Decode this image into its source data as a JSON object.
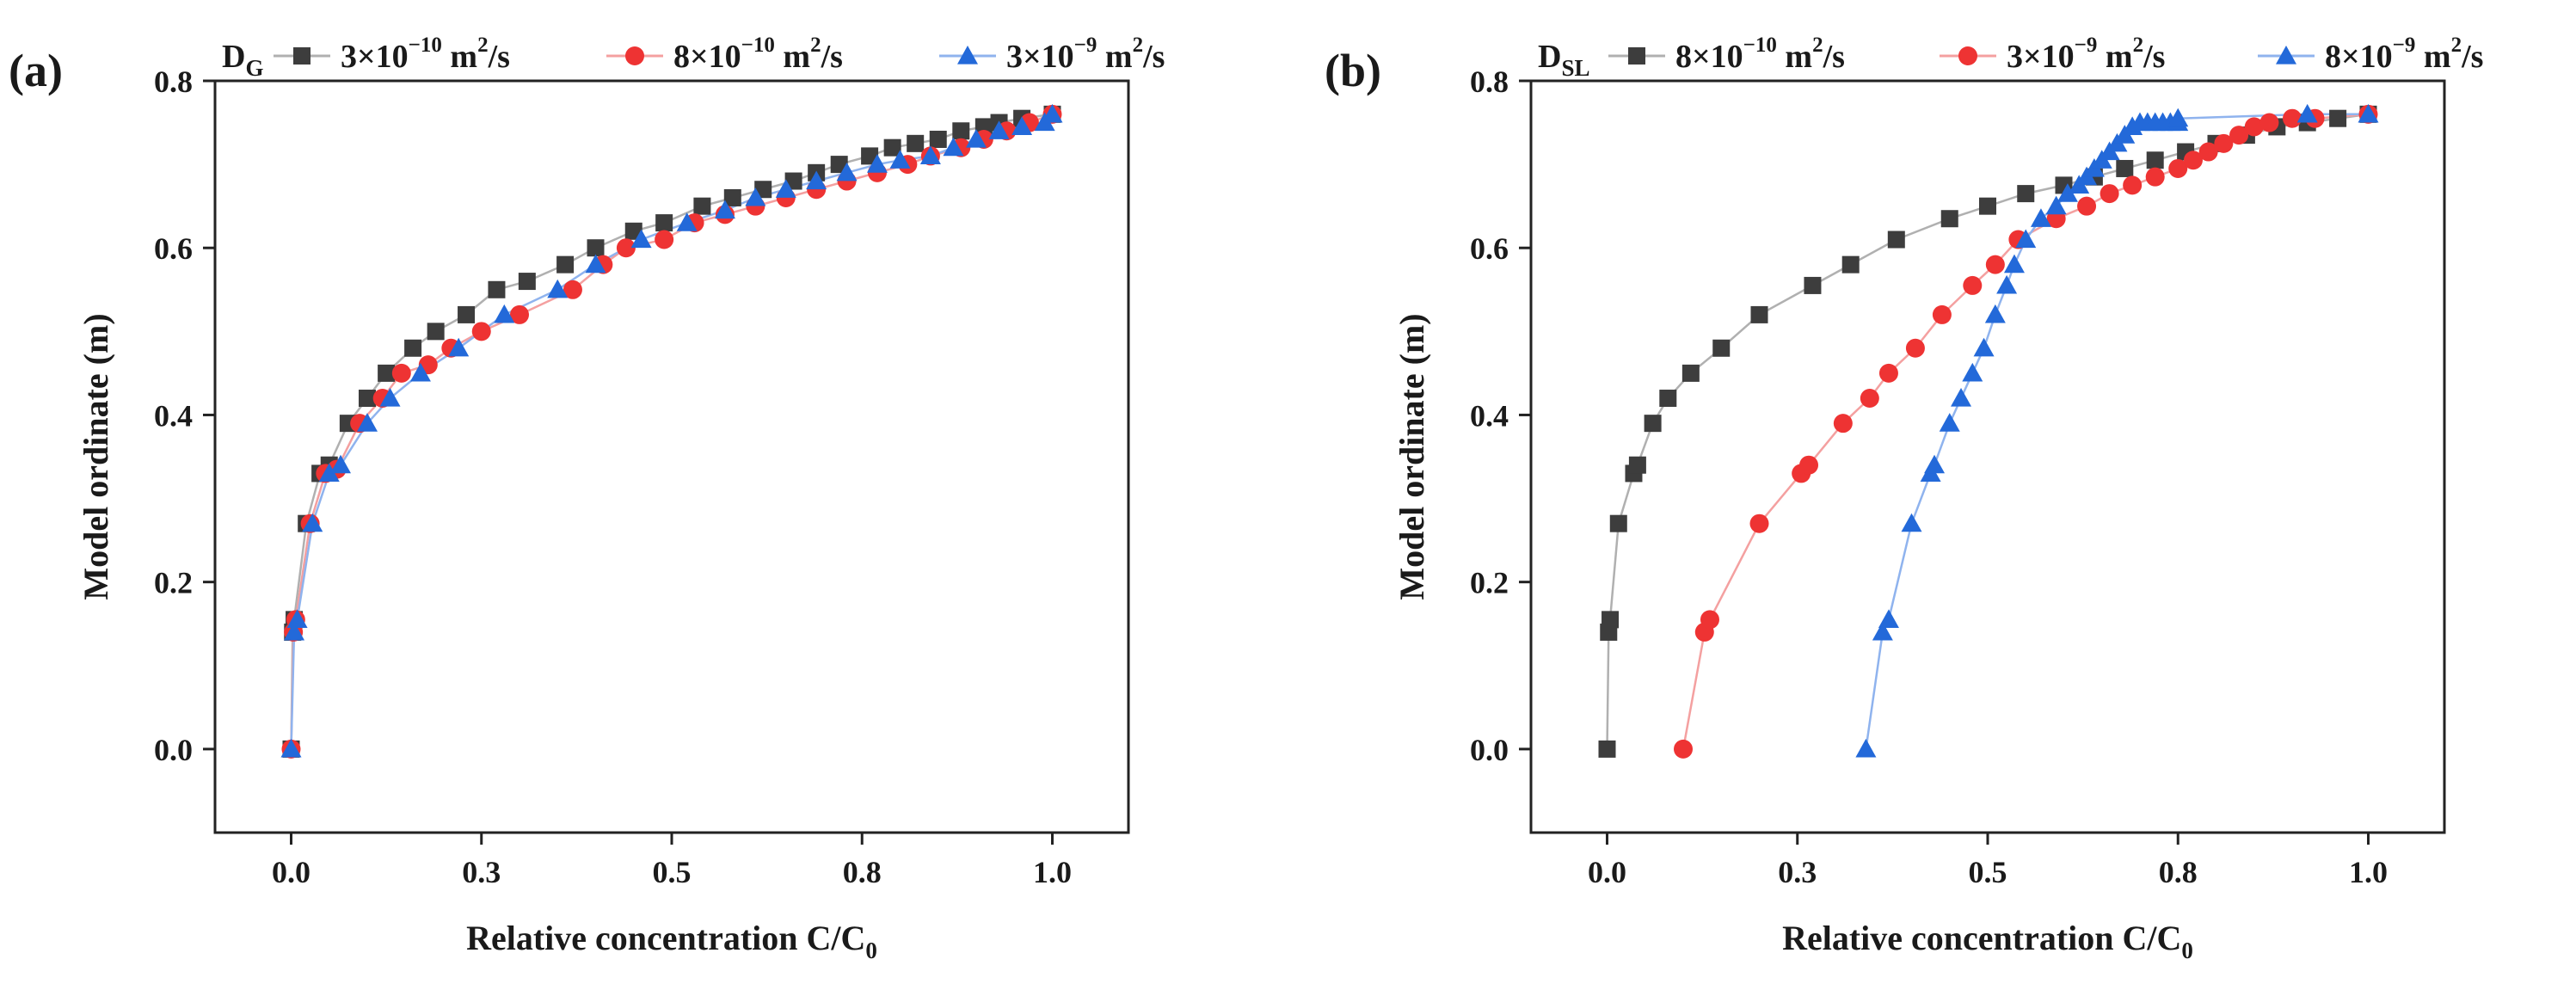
{
  "chart_data": [
    {
      "type": "line",
      "panel_label": "(a)",
      "legend_title": "D",
      "legend_title_sub": "G",
      "xlabel": "Relative concentration C/C",
      "xlabel_sub": "0",
      "ylabel": "Model ordinate (m)",
      "xlim": [
        -0.1,
        1.1
      ],
      "ylim": [
        -0.1,
        0.8
      ],
      "xticks": [
        0.0,
        0.25,
        0.5,
        0.75,
        1.0
      ],
      "xtick_labels": [
        "0.0",
        "0.3",
        "0.5",
        "0.8",
        "1.0"
      ],
      "yticks": [
        0.0,
        0.2,
        0.4,
        0.6,
        0.8
      ],
      "ytick_labels": [
        "0.0",
        "0.2",
        "0.4",
        "0.6",
        "0.8"
      ],
      "legend_placement": "top",
      "series": [
        {
          "name": "3×10⁻¹⁰ m²/s",
          "mantissa": "3×10",
          "exponent": "−10",
          "unit": " m",
          "unit_sup": "2",
          "unit_tail": "/s",
          "marker": "square",
          "color": "#3d3d3d",
          "line_color": "#b0b0b0",
          "x": [
            0.0,
            0.002,
            0.004,
            0.02,
            0.038,
            0.05,
            0.075,
            0.1,
            0.125,
            0.16,
            0.19,
            0.23,
            0.27,
            0.31,
            0.36,
            0.4,
            0.45,
            0.49,
            0.54,
            0.58,
            0.62,
            0.66,
            0.69,
            0.72,
            0.76,
            0.79,
            0.82,
            0.85,
            0.88,
            0.91,
            0.93,
            0.96,
            1.0
          ],
          "y": [
            0.0,
            0.14,
            0.155,
            0.27,
            0.33,
            0.34,
            0.39,
            0.42,
            0.45,
            0.48,
            0.5,
            0.52,
            0.55,
            0.56,
            0.58,
            0.6,
            0.62,
            0.63,
            0.65,
            0.66,
            0.67,
            0.68,
            0.69,
            0.7,
            0.71,
            0.72,
            0.725,
            0.73,
            0.74,
            0.745,
            0.75,
            0.755,
            0.76
          ]
        },
        {
          "name": "8×10⁻¹⁰ m²/s",
          "mantissa": "8×10",
          "exponent": "−10",
          "unit": " m",
          "unit_sup": "2",
          "unit_tail": "/s",
          "marker": "circle",
          "color": "#ee3333",
          "line_color": "#f4a0a0",
          "x": [
            0.0,
            0.003,
            0.006,
            0.025,
            0.045,
            0.06,
            0.09,
            0.12,
            0.145,
            0.18,
            0.21,
            0.25,
            0.3,
            0.37,
            0.41,
            0.44,
            0.49,
            0.53,
            0.57,
            0.61,
            0.65,
            0.69,
            0.73,
            0.77,
            0.81,
            0.84,
            0.88,
            0.91,
            0.94,
            0.97,
            1.0
          ],
          "y": [
            0.0,
            0.14,
            0.155,
            0.27,
            0.33,
            0.335,
            0.39,
            0.42,
            0.45,
            0.46,
            0.48,
            0.5,
            0.52,
            0.55,
            0.58,
            0.6,
            0.61,
            0.63,
            0.64,
            0.65,
            0.66,
            0.67,
            0.68,
            0.69,
            0.7,
            0.71,
            0.72,
            0.73,
            0.74,
            0.75,
            0.76
          ]
        },
        {
          "name": "3×10⁻⁹ m²/s",
          "mantissa": "3×10",
          "exponent": "−9",
          "unit": " m",
          "unit_sup": "2",
          "unit_tail": "/s",
          "marker": "triangle",
          "color": "#2369d9",
          "line_color": "#8fb3ee",
          "x": [
            0.0,
            0.004,
            0.008,
            0.028,
            0.05,
            0.065,
            0.1,
            0.13,
            0.17,
            0.22,
            0.28,
            0.35,
            0.4,
            0.46,
            0.52,
            0.57,
            0.61,
            0.65,
            0.69,
            0.73,
            0.77,
            0.8,
            0.84,
            0.87,
            0.9,
            0.93,
            0.96,
            0.99,
            1.0
          ],
          "y": [
            0.0,
            0.14,
            0.155,
            0.27,
            0.33,
            0.34,
            0.39,
            0.42,
            0.45,
            0.48,
            0.52,
            0.55,
            0.58,
            0.61,
            0.63,
            0.645,
            0.66,
            0.67,
            0.68,
            0.69,
            0.7,
            0.705,
            0.71,
            0.72,
            0.73,
            0.74,
            0.745,
            0.75,
            0.76
          ]
        }
      ]
    },
    {
      "type": "line",
      "panel_label": "(b)",
      "legend_title": "D",
      "legend_title_sub": "SL",
      "xlabel": "Relative concentration C/C",
      "xlabel_sub": "0",
      "ylabel": "Model ordinate (m)",
      "xlim": [
        -0.1,
        1.1
      ],
      "ylim": [
        -0.1,
        0.8
      ],
      "xticks": [
        0.0,
        0.25,
        0.5,
        0.75,
        1.0
      ],
      "xtick_labels": [
        "0.0",
        "0.3",
        "0.5",
        "0.8",
        "1.0"
      ],
      "yticks": [
        0.0,
        0.2,
        0.4,
        0.6,
        0.8
      ],
      "ytick_labels": [
        "0.0",
        "0.2",
        "0.4",
        "0.6",
        "0.8"
      ],
      "legend_placement": "top",
      "series": [
        {
          "name": "8×10⁻¹⁰ m²/s",
          "mantissa": "8×10",
          "exponent": "−10",
          "unit": " m",
          "unit_sup": "2",
          "unit_tail": "/s",
          "marker": "square",
          "color": "#3d3d3d",
          "line_color": "#b0b0b0",
          "x": [
            0.0,
            0.002,
            0.004,
            0.015,
            0.035,
            0.04,
            0.06,
            0.08,
            0.11,
            0.15,
            0.2,
            0.27,
            0.32,
            0.38,
            0.45,
            0.5,
            0.55,
            0.6,
            0.64,
            0.68,
            0.72,
            0.76,
            0.8,
            0.84,
            0.88,
            0.92,
            0.96,
            1.0
          ],
          "y": [
            0.0,
            0.14,
            0.155,
            0.27,
            0.33,
            0.34,
            0.39,
            0.42,
            0.45,
            0.48,
            0.52,
            0.555,
            0.58,
            0.61,
            0.635,
            0.65,
            0.665,
            0.675,
            0.685,
            0.695,
            0.705,
            0.715,
            0.725,
            0.735,
            0.745,
            0.75,
            0.755,
            0.76
          ]
        },
        {
          "name": "3×10⁻⁹ m²/s",
          "mantissa": "3×10",
          "exponent": "−9",
          "unit": " m",
          "unit_sup": "2",
          "unit_tail": "/s",
          "marker": "circle",
          "color": "#ee3333",
          "line_color": "#f4a0a0",
          "x": [
            0.1,
            0.128,
            0.135,
            0.2,
            0.255,
            0.265,
            0.31,
            0.345,
            0.37,
            0.405,
            0.44,
            0.48,
            0.51,
            0.54,
            0.59,
            0.63,
            0.66,
            0.69,
            0.72,
            0.75,
            0.77,
            0.79,
            0.81,
            0.83,
            0.85,
            0.87,
            0.9,
            0.93,
            1.0
          ],
          "y": [
            0.0,
            0.14,
            0.155,
            0.27,
            0.33,
            0.34,
            0.39,
            0.42,
            0.45,
            0.48,
            0.52,
            0.555,
            0.58,
            0.61,
            0.635,
            0.65,
            0.665,
            0.675,
            0.685,
            0.695,
            0.705,
            0.715,
            0.725,
            0.735,
            0.745,
            0.75,
            0.755,
            0.755,
            0.76
          ]
        },
        {
          "name": "8×10⁻⁹ m²/s",
          "mantissa": "8×10",
          "exponent": "−9",
          "unit": " m",
          "unit_sup": "2",
          "unit_tail": "/s",
          "marker": "triangle",
          "color": "#2369d9",
          "line_color": "#8fb3ee",
          "x": [
            0.34,
            0.362,
            0.37,
            0.4,
            0.425,
            0.43,
            0.45,
            0.465,
            0.48,
            0.495,
            0.51,
            0.525,
            0.535,
            0.55,
            0.57,
            0.59,
            0.605,
            0.62,
            0.63,
            0.64,
            0.65,
            0.66,
            0.67,
            0.68,
            0.69,
            0.7,
            0.71,
            0.72,
            0.73,
            0.74,
            0.75,
            0.75,
            0.92,
            1.0
          ],
          "y": [
            0.0,
            0.14,
            0.155,
            0.27,
            0.33,
            0.34,
            0.39,
            0.42,
            0.45,
            0.48,
            0.52,
            0.555,
            0.58,
            0.61,
            0.635,
            0.65,
            0.665,
            0.675,
            0.685,
            0.695,
            0.705,
            0.715,
            0.725,
            0.735,
            0.745,
            0.75,
            0.75,
            0.75,
            0.75,
            0.75,
            0.75,
            0.755,
            0.76,
            0.76
          ]
        }
      ]
    }
  ]
}
